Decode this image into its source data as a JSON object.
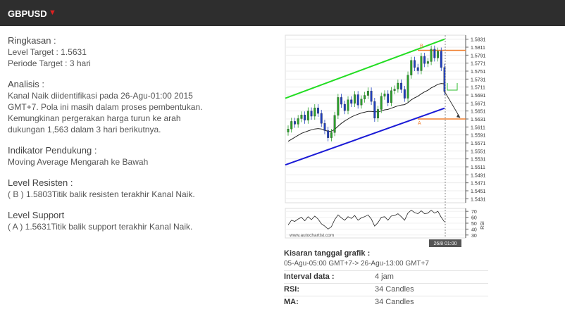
{
  "header": {
    "symbol": "GBPUSD",
    "direction_icon": "triangle-down-icon",
    "direction_color": "#e02020"
  },
  "summary": {
    "title": "Ringkasan :",
    "target_level": "Level Target : 1.5631",
    "target_period": "Periode Target : 3 hari"
  },
  "analysis": {
    "title": "Analisis :",
    "line1": "Kanal Naik diidentifikasi pada 26-Agu-01:00 2015",
    "line2": "GMT+7. Pola ini masih dalam proses pembentukan.",
    "line3": "Kemungkinan pergerakan harga turun ke arah",
    "line4": "dukungan 1,563 dalam 3 hari berikutnya."
  },
  "indicator": {
    "title": "Indikator Pendukung :",
    "text": "Moving Average Mengarah ke Bawah"
  },
  "resistance": {
    "title": "Level Resisten :",
    "text": "( B ) 1.5803Titik balik resisten terakhir Kanal Naik."
  },
  "support": {
    "title": "Level Support",
    "text": "( A ) 1.5631Titik balik support terakhir Kanal Naik."
  },
  "chart_data": {
    "type": "line",
    "title": "",
    "price_ticks": [
      "1.5831",
      "1.5811",
      "1.5791",
      "1.5771",
      "1.5751",
      "1.5731",
      "1.5711",
      "1.5691",
      "1.5671",
      "1.5651",
      "1.5631",
      "1.5611",
      "1.5591",
      "1.5571",
      "1.5551",
      "1.5531",
      "1.5511",
      "1.5491",
      "1.5471",
      "1.5451",
      "1.5431"
    ],
    "ylim": [
      1.5421,
      1.5841
    ],
    "rsi_ticks": [
      "70",
      "60",
      "50",
      "40",
      "30"
    ],
    "rsi_ylim": [
      25,
      75
    ],
    "rsi_label": "RSI",
    "watermark": "www.autochartist.com",
    "time_marker": "26/8 01:00",
    "point_b_label": "B",
    "point_a_label": "A",
    "resistance_level": 1.5803,
    "support_level": 1.5631,
    "closes": [
      1.5606,
      1.5625,
      1.5618,
      1.5632,
      1.5641,
      1.5628,
      1.5651,
      1.5638,
      1.5659,
      1.5645,
      1.562,
      1.5602,
      1.5584,
      1.5597,
      1.564,
      1.5685,
      1.5668,
      1.5652,
      1.5679,
      1.567,
      1.5692,
      1.5666,
      1.5681,
      1.569,
      1.5701,
      1.5675,
      1.5633,
      1.5655,
      1.5688,
      1.5694,
      1.5672,
      1.5702,
      1.5706,
      1.5721,
      1.5705,
      1.5683,
      1.5741,
      1.5778,
      1.576,
      1.5752,
      1.5788,
      1.577,
      1.5775,
      1.5806,
      1.5784,
      1.5801,
      1.576,
      1.57
    ],
    "ma": [
      1.5575,
      1.558,
      1.5585,
      1.559,
      1.5595,
      1.5598,
      1.5601,
      1.5604,
      1.5606,
      1.5607,
      1.5606,
      1.5603,
      1.56,
      1.56,
      1.5605,
      1.5613,
      1.562,
      1.5626,
      1.5631,
      1.5636,
      1.564,
      1.5643,
      1.5646,
      1.5648,
      1.565,
      1.565,
      1.5649,
      1.5649,
      1.5651,
      1.5654,
      1.5655,
      1.5658,
      1.5661,
      1.5664,
      1.5666,
      1.5667,
      1.5672,
      1.5679,
      1.5684,
      1.5688,
      1.5694,
      1.5699,
      1.5703,
      1.5709,
      1.5713,
      1.5718,
      1.572,
      1.5719
    ],
    "rsi": [
      47,
      55,
      53,
      57,
      60,
      54,
      61,
      56,
      62,
      57,
      49,
      45,
      40,
      44,
      56,
      64,
      59,
      55,
      61,
      58,
      63,
      55,
      59,
      61,
      64,
      57,
      45,
      51,
      60,
      61,
      55,
      62,
      63,
      66,
      61,
      55,
      67,
      72,
      68,
      66,
      71,
      66,
      67,
      72,
      67,
      70,
      60,
      52
    ],
    "projection_color": "#2bbb2b",
    "channel_upper_color": "#22dd22",
    "channel_lower_color": "#1a1ad6",
    "level_color": "#f08030",
    "bull_color": "#2aa02a",
    "bear_color": "#1f3fbf"
  },
  "chart_info": {
    "title": "Kisaran tanggal grafik :",
    "range": "05-Agu-05:00 GMT+7-> 26-Agu-13:00 GMT+7",
    "rows": [
      {
        "label": "Interval data :",
        "value": "4 jam"
      },
      {
        "label": "RSI:",
        "value": "34 Candles"
      },
      {
        "label": "MA:",
        "value": "34 Candles"
      }
    ]
  }
}
